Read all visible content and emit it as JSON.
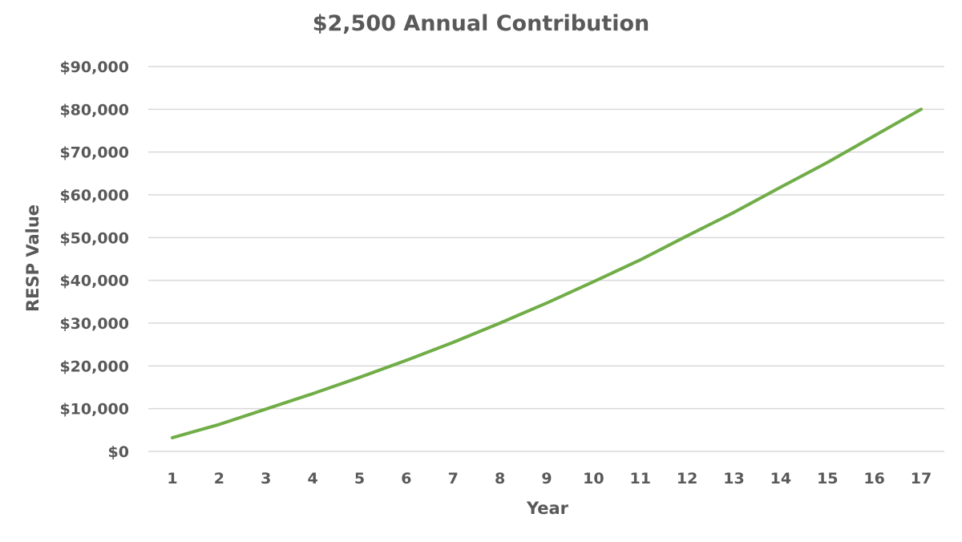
{
  "chart_data": {
    "type": "line",
    "title": "$2,500 Annual Contribution",
    "xlabel": "Year",
    "ylabel": "RESP Value",
    "categories": [
      "1",
      "2",
      "3",
      "4",
      "5",
      "6",
      "7",
      "8",
      "9",
      "10",
      "11",
      "12",
      "13",
      "14",
      "15",
      "16",
      "17"
    ],
    "series": [
      {
        "values": [
          3200,
          6300,
          9900,
          13500,
          17300,
          21300,
          25500,
          30000,
          34700,
          39700,
          44800,
          50400,
          55900,
          61800,
          67600,
          73800,
          80000
        ]
      }
    ],
    "ylim": [
      0,
      90000
    ],
    "y_ticks": [
      "$0",
      "$10,000",
      "$20,000",
      "$30,000",
      "$40,000",
      "$50,000",
      "$60,000",
      "$70,000",
      "$80,000",
      "$90,000"
    ],
    "grid": true,
    "legend": "none",
    "colors": {
      "line": "#70ad47",
      "gridline": "#d9d9d9",
      "text": "#595959"
    }
  }
}
